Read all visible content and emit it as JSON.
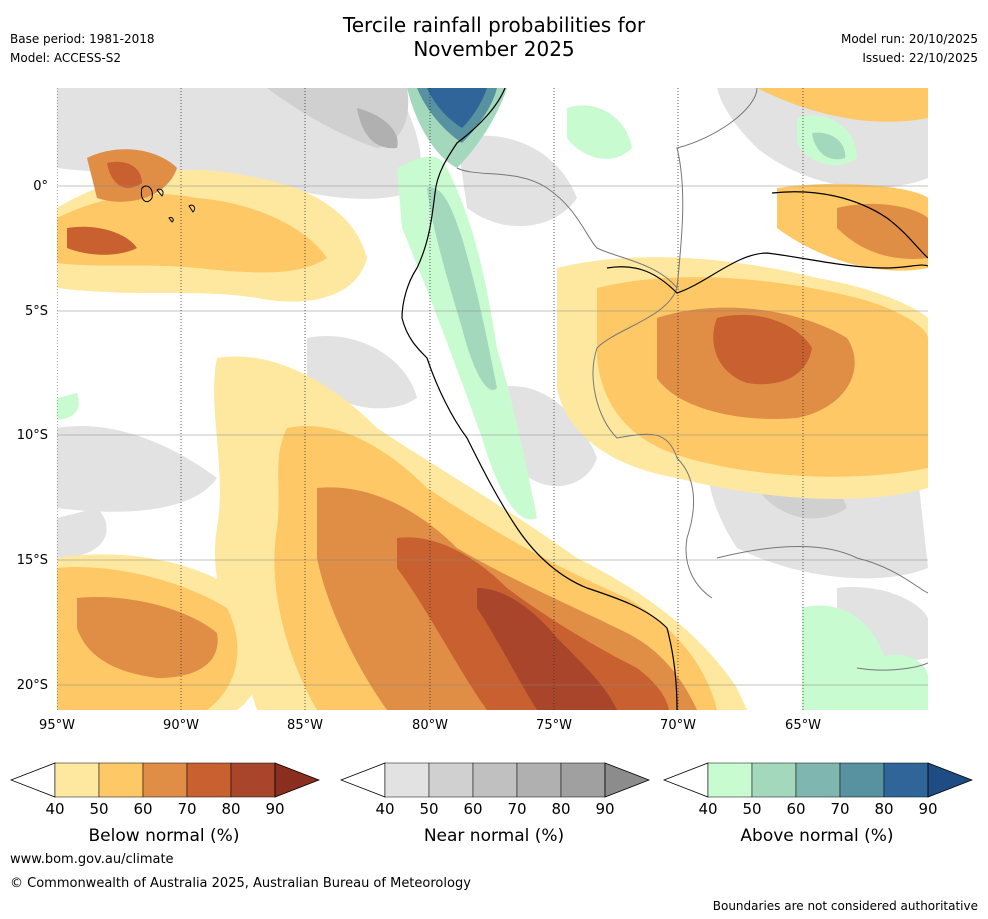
{
  "header": {
    "title_line1": "Tercile rainfall probabilities for",
    "title_line2": "November 2025",
    "base_period": "Base period: 1981-2018",
    "model": "Model: ACCESS-S2",
    "model_run": "Model run: 20/10/2025",
    "issued": "Issued: 22/10/2025"
  },
  "axes": {
    "lat_labels": [
      "0°",
      "5°S",
      "10°S",
      "15°S",
      "20°S"
    ],
    "lon_labels": [
      "95°W",
      "90°W",
      "85°W",
      "80°W",
      "75°W",
      "70°W",
      "65°W"
    ]
  },
  "colorbars": [
    {
      "name": "below",
      "title": "Below normal (%)",
      "ticks": [
        "40",
        "50",
        "60",
        "70",
        "80",
        "90"
      ],
      "colors": [
        "#fee89f",
        "#fdc865",
        "#e08e45",
        "#c8602f",
        "#a8452a",
        "#8a2f1f"
      ]
    },
    {
      "name": "near",
      "title": "Near normal (%)",
      "ticks": [
        "40",
        "50",
        "60",
        "70",
        "80",
        "90"
      ],
      "colors": [
        "#e2e2e2",
        "#d0d0d0",
        "#c0c0c0",
        "#b0b0b0",
        "#a0a0a0",
        "#8c8c8c"
      ]
    },
    {
      "name": "above",
      "title": "Above normal (%)",
      "ticks": [
        "40",
        "50",
        "60",
        "70",
        "80",
        "90"
      ],
      "colors": [
        "#c9fbd0",
        "#a3d8bd",
        "#7fb7b0",
        "#5891a0",
        "#30659a",
        "#1f4c82"
      ]
    }
  ],
  "footer": {
    "url": "www.bom.gov.au/climate",
    "copyright": "© Commonwealth of Australia 2025, Australian Bureau of Meteorology",
    "disclaimer": "Boundaries are not considered authoritative"
  }
}
